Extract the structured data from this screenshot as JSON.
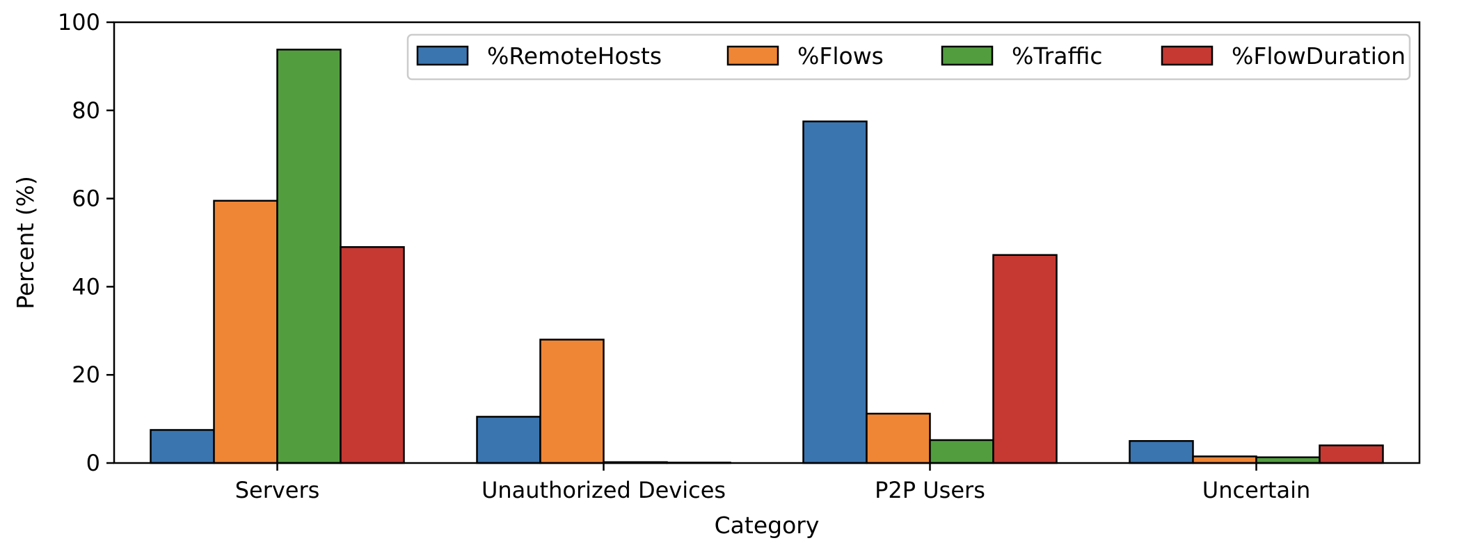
{
  "chart_data": {
    "type": "bar",
    "title": "",
    "xlabel": "Category",
    "ylabel": "Percent (%)",
    "ylim": [
      0,
      100
    ],
    "yticks": [
      0,
      20,
      40,
      60,
      80,
      100
    ],
    "grid": false,
    "legend_position": "top-right",
    "categories": [
      "Servers",
      "Unauthorized Devices",
      "P2P Users",
      "Uncertain"
    ],
    "series": [
      {
        "name": "%RemoteHosts",
        "color": "#3a75af",
        "values": [
          7.5,
          10.5,
          77.5,
          5.0
        ]
      },
      {
        "name": "%Flows",
        "color": "#ef8636",
        "values": [
          59.5,
          28.0,
          11.2,
          1.5
        ]
      },
      {
        "name": "%Traffic",
        "color": "#529e3f",
        "values": [
          93.8,
          0.2,
          5.2,
          1.3
        ]
      },
      {
        "name": "%FlowDuration",
        "color": "#c53932",
        "values": [
          49.0,
          0.1,
          47.2,
          4.0
        ]
      }
    ]
  }
}
